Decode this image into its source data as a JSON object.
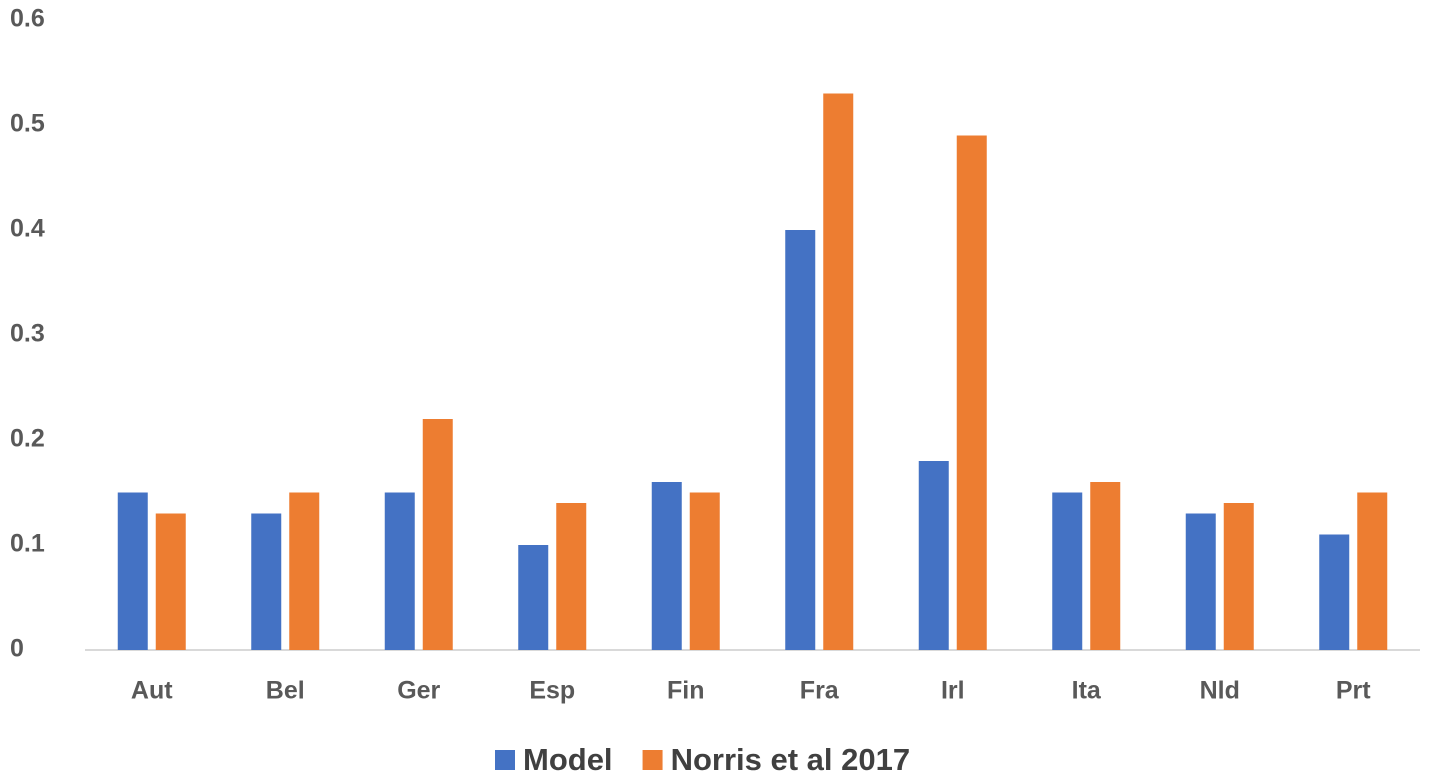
{
  "chart_data": {
    "type": "bar",
    "categories": [
      "Aut",
      "Bel",
      "Ger",
      "Esp",
      "Fin",
      "Fra",
      "Irl",
      "Ita",
      "Nld",
      "Prt"
    ],
    "series": [
      {
        "name": "Model",
        "color": "#4472c4",
        "values": [
          0.15,
          0.13,
          0.15,
          0.1,
          0.16,
          0.4,
          0.18,
          0.15,
          0.13,
          0.11
        ]
      },
      {
        "name": "Norris et al 2017",
        "color": "#ed7d31",
        "values": [
          0.13,
          0.15,
          0.22,
          0.14,
          0.15,
          0.53,
          0.49,
          0.16,
          0.14,
          0.15
        ]
      }
    ],
    "ylim": [
      0,
      0.6
    ],
    "yticks": [
      0,
      0.1,
      0.2,
      0.3,
      0.4,
      0.5,
      0.6
    ],
    "grid": false,
    "legend": "bottom"
  }
}
